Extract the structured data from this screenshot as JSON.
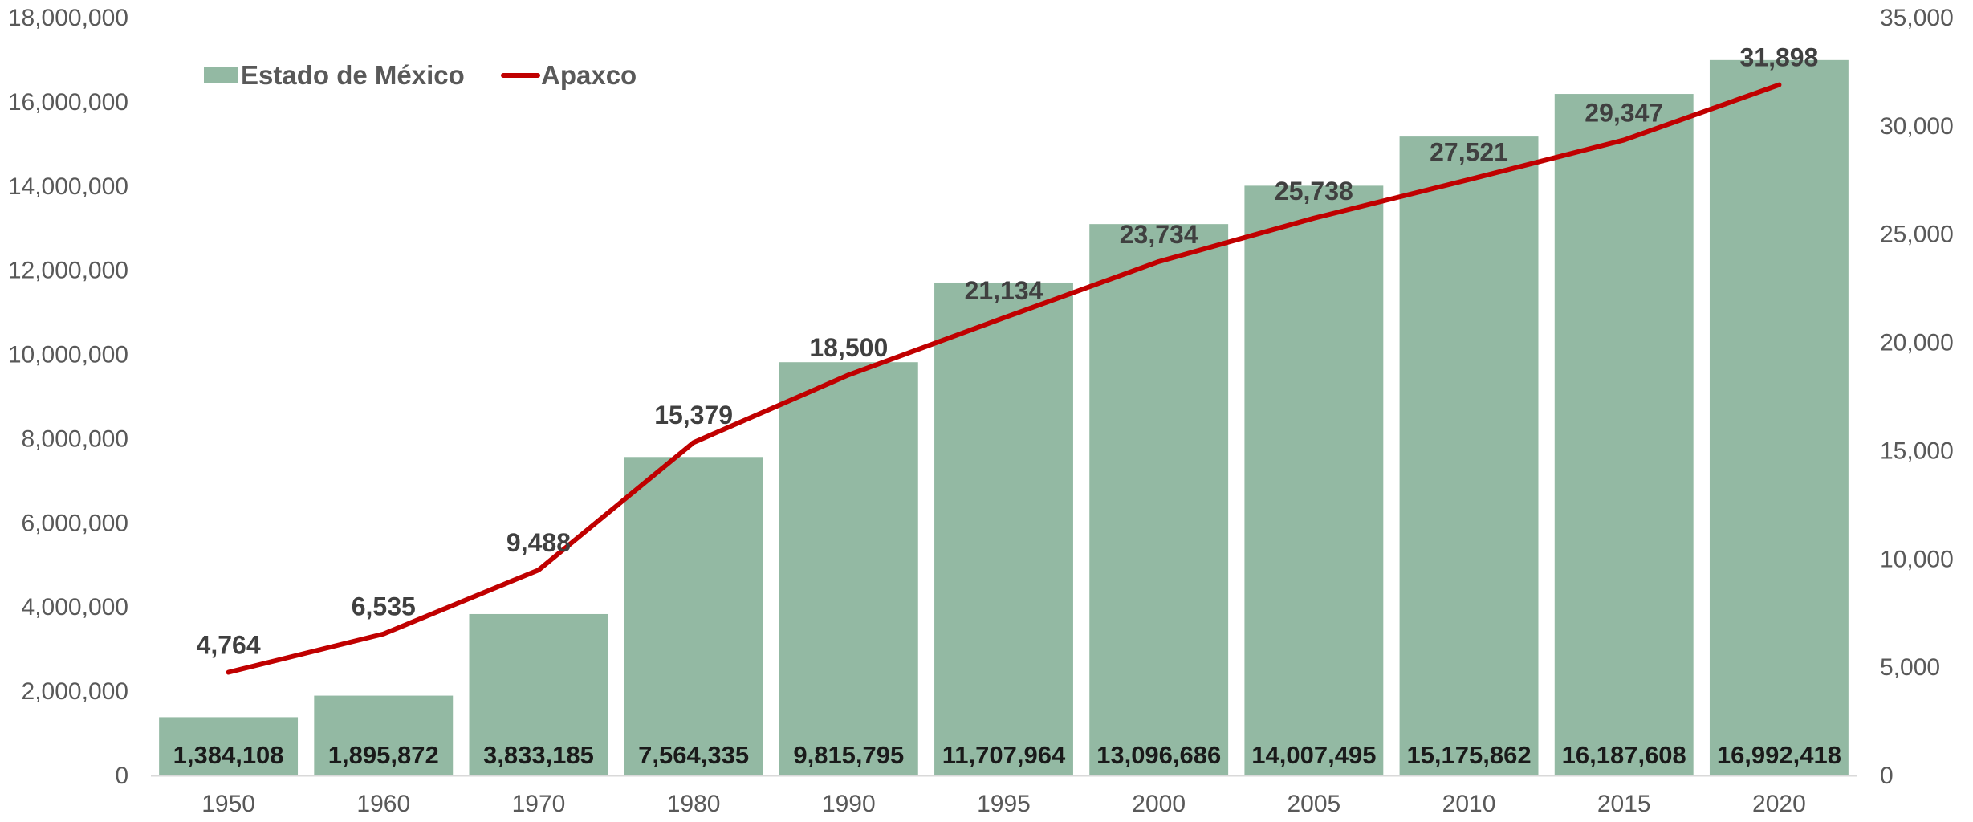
{
  "chart_data": {
    "type": "bar",
    "categories": [
      "1950",
      "1960",
      "1970",
      "1980",
      "1990",
      "1995",
      "2000",
      "2005",
      "2010",
      "2015",
      "2020"
    ],
    "series": [
      {
        "name": "Estado de México",
        "type": "bar",
        "axis": "left",
        "color": "#93b9a3",
        "values": [
          1384108,
          1895872,
          3833185,
          7564335,
          9815795,
          11707964,
          13096686,
          14007495,
          15175862,
          16187608,
          16992418
        ],
        "labels": [
          "1,384,108",
          "1,895,872",
          "3,833,185",
          "7,564,335",
          "9,815,795",
          "11,707,964",
          "13,096,686",
          "14,007,495",
          "15,175,862",
          "16,187,608",
          "16,992,418"
        ]
      },
      {
        "name": "Apaxco",
        "type": "line",
        "axis": "right",
        "color": "#c00000",
        "values": [
          4764,
          6535,
          9488,
          15379,
          18500,
          21134,
          23734,
          25738,
          27521,
          29347,
          31898
        ],
        "labels": [
          "4,764",
          "6,535",
          "9,488",
          "15,379",
          "18,500",
          "21,134",
          "23,734",
          "25,738",
          "27,521",
          "29,347",
          "31,898"
        ]
      }
    ],
    "y_left": {
      "lim": [
        0,
        18000000
      ],
      "ticks": [
        "0",
        "2,000,000",
        "4,000,000",
        "6,000,000",
        "8,000,000",
        "10,000,000",
        "12,000,000",
        "14,000,000",
        "16,000,000",
        "18,000,000"
      ]
    },
    "y_right": {
      "lim": [
        0,
        35000
      ],
      "ticks": [
        "0",
        "5,000",
        "10,000",
        "15,000",
        "20,000",
        "25,000",
        "30,000",
        "35,000"
      ]
    },
    "grid": false,
    "legend": "top-left",
    "title": "",
    "xlabel": "",
    "ylabel": ""
  }
}
